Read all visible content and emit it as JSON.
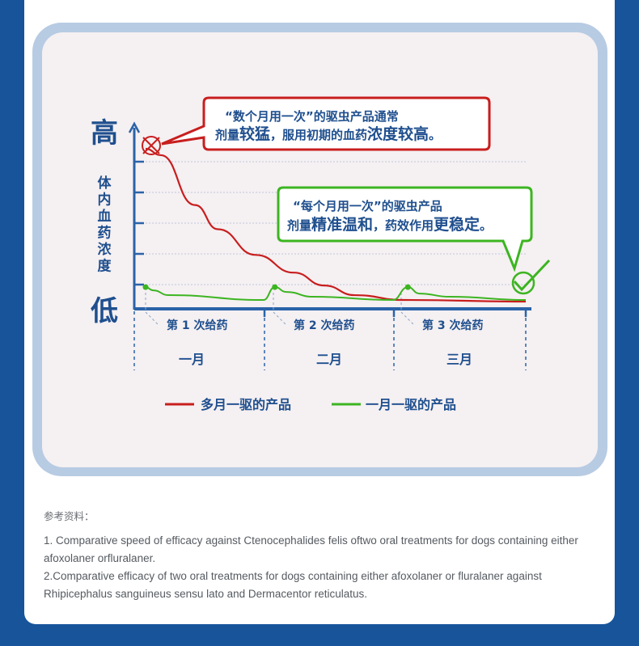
{
  "chart_data": {
    "type": "line",
    "y_axis_top_label": "高",
    "y_axis_bottom_label": "低",
    "ylabel": "体内血药浓度",
    "x_dose_labels": [
      "第 1 次给药",
      "第 2 次给药",
      "第 3 次给药"
    ],
    "x_month_labels": [
      "一月",
      "二月",
      "三月"
    ],
    "series": [
      {
        "name": "多月一驱的产品",
        "color": "#c81e1e",
        "values": [
          [
            0,
            0.97
          ],
          [
            0.04,
            0.93
          ],
          [
            0.13,
            0.62
          ],
          [
            0.19,
            0.47
          ],
          [
            0.29,
            0.31
          ],
          [
            0.39,
            0.2
          ],
          [
            0.47,
            0.12
          ],
          [
            0.55,
            0.06
          ],
          [
            0.68,
            0.03
          ],
          [
            1.0,
            0.02
          ]
        ]
      },
      {
        "name": "一月一驱的产品",
        "color": "#3cb521",
        "values": [
          [
            0,
            0.11
          ],
          [
            0.02,
            0.09
          ],
          [
            0.06,
            0.06
          ],
          [
            0.31,
            0.03
          ],
          [
            0.34,
            0.11
          ],
          [
            0.37,
            0.08
          ],
          [
            0.44,
            0.05
          ],
          [
            0.65,
            0.03
          ],
          [
            0.69,
            0.11
          ],
          [
            0.72,
            0.07
          ],
          [
            0.8,
            0.05
          ],
          [
            1.0,
            0.03
          ]
        ]
      }
    ]
  },
  "callouts": {
    "red": {
      "line1": "“数个月用一次”的驱虫产品通常",
      "line2_a": "剂量",
      "line2_b": "较猛",
      "line2_c": "，服用初期的血药",
      "line2_d": "浓度较高",
      "line2_e": "。"
    },
    "green": {
      "line1": "“每个月用一次”的驱虫产品",
      "line2_a": "剂量",
      "line2_b": "精准温和",
      "line2_c": "，药效作用",
      "line2_d": "更稳定",
      "line2_e": "。"
    }
  },
  "references": {
    "heading": "参考资料：",
    "items": [
      "1. Comparative speed of efficacy against Ctenocephalides felis oftwo oral treatments for dogs containing either afoxolaner orfluralaner.",
      "2.Comparative efficacy of two oral treatments for dogs containing either afoxolaner or fluralaner against Rhipicephalus sanguineus sensu lato and Dermacentor reticulatus."
    ]
  },
  "colors": {
    "frame": "#17549a",
    "axis": "#2a63a8",
    "red": "#c81e1e",
    "green": "#3cb521",
    "text_blue": "#1f4f8e"
  }
}
